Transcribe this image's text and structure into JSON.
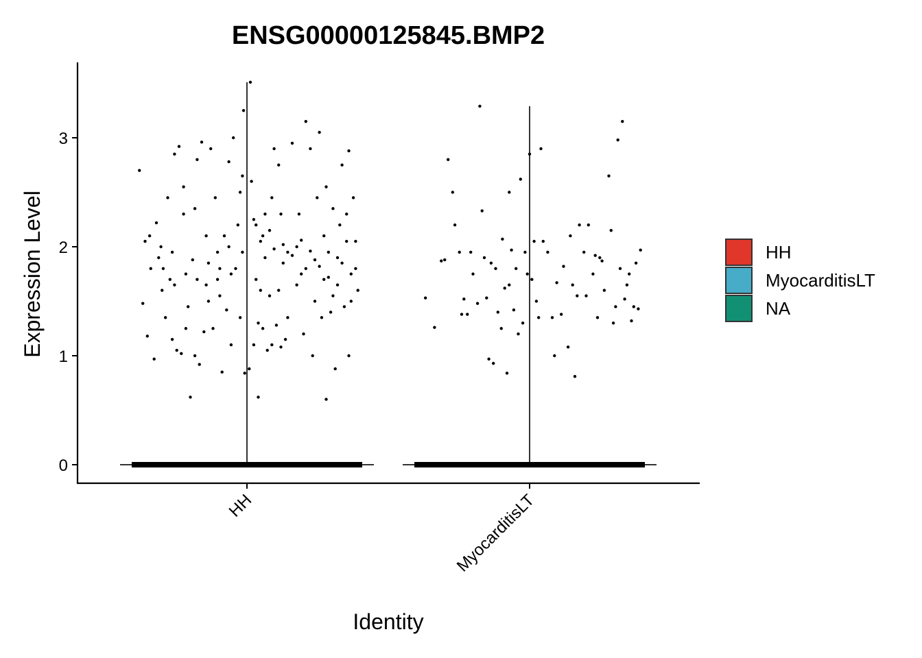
{
  "chart_data": {
    "type": "violin",
    "title": "ENSG00000125845.BMP2",
    "xlabel": "Identity",
    "ylabel": "Expression Level",
    "categories": [
      "HH",
      "MyocarditisLT"
    ],
    "ylim": [
      -0.17,
      3.7
    ],
    "yticks": [
      0,
      1,
      2,
      3
    ],
    "grid": false,
    "legend": {
      "position": "right",
      "entries": [
        {
          "label": "HH",
          "color": "#E0372A"
        },
        {
          "label": "MyocarditisLT",
          "color": "#46ACC8"
        },
        {
          "label": "NA",
          "color": "#129074"
        }
      ]
    },
    "series": [
      {
        "category": "HH",
        "max": 3.51,
        "zero_count_approx": 2000,
        "points": [
          [
            -0.95,
            2.7
          ],
          [
            -0.9,
            2.05
          ],
          [
            -0.85,
            1.8
          ],
          [
            -0.8,
            2.22
          ],
          [
            -0.75,
            1.6
          ],
          [
            -0.7,
            2.45
          ],
          [
            -0.92,
            1.48
          ],
          [
            -0.88,
            1.18
          ],
          [
            -0.82,
            0.97
          ],
          [
            -0.78,
            1.9
          ],
          [
            -0.72,
            1.35
          ],
          [
            -0.68,
            1.7
          ],
          [
            -0.64,
            2.85
          ],
          [
            -0.6,
            2.92
          ],
          [
            -0.56,
            2.55
          ],
          [
            -0.52,
            1.45
          ],
          [
            -0.48,
            1.88
          ],
          [
            -0.44,
            2.8
          ],
          [
            -0.4,
            2.96
          ],
          [
            -0.36,
            1.65
          ],
          [
            -0.32,
            2.9
          ],
          [
            -0.28,
            2.45
          ],
          [
            -0.24,
            1.55
          ],
          [
            -0.2,
            2.1
          ],
          [
            -0.16,
            2.78
          ],
          [
            -0.12,
            3.0
          ],
          [
            -0.08,
            2.2
          ],
          [
            -0.04,
            2.65
          ],
          [
            -0.66,
            1.15
          ],
          [
            -0.62,
            1.05
          ],
          [
            -0.58,
            1.02
          ],
          [
            -0.54,
            1.25
          ],
          [
            -0.5,
            0.62
          ],
          [
            -0.46,
            1.0
          ],
          [
            -0.42,
            0.92
          ],
          [
            -0.38,
            1.22
          ],
          [
            -0.34,
            1.5
          ],
          [
            -0.3,
            1.25
          ],
          [
            -0.26,
            1.7
          ],
          [
            -0.22,
            0.85
          ],
          [
            -0.18,
            1.42
          ],
          [
            -0.14,
            1.1
          ],
          [
            -0.1,
            1.8
          ],
          [
            -0.06,
            1.35
          ],
          [
            -0.02,
            0.84
          ],
          [
            -0.86,
            2.1
          ],
          [
            -0.76,
            2.0
          ],
          [
            -0.66,
            1.95
          ],
          [
            -0.56,
            2.3
          ],
          [
            -0.46,
            2.35
          ],
          [
            -0.36,
            2.1
          ],
          [
            -0.26,
            1.95
          ],
          [
            -0.16,
            2.0
          ],
          [
            -0.06,
            2.5
          ],
          [
            -0.03,
            3.25
          ],
          [
            -0.74,
            1.8
          ],
          [
            -0.64,
            1.65
          ],
          [
            -0.54,
            1.75
          ],
          [
            -0.44,
            1.7
          ],
          [
            -0.34,
            1.85
          ],
          [
            -0.24,
            1.8
          ],
          [
            -0.14,
            1.75
          ],
          [
            -0.04,
            1.95
          ],
          [
            0.04,
            2.6
          ],
          [
            0.08,
            2.2
          ],
          [
            0.12,
            1.6
          ],
          [
            0.16,
            2.3
          ],
          [
            0.2,
            2.15
          ],
          [
            0.24,
            2.9
          ],
          [
            0.28,
            2.75
          ],
          [
            0.32,
            1.85
          ],
          [
            0.36,
            1.35
          ],
          [
            0.4,
            2.95
          ],
          [
            0.44,
            2.0
          ],
          [
            0.48,
            1.75
          ],
          [
            0.52,
            3.15
          ],
          [
            0.56,
            2.9
          ],
          [
            0.6,
            1.5
          ],
          [
            0.64,
            3.05
          ],
          [
            0.68,
            2.1
          ],
          [
            0.72,
            1.95
          ],
          [
            0.76,
            2.35
          ],
          [
            0.8,
            1.65
          ],
          [
            0.84,
            2.75
          ],
          [
            0.88,
            2.05
          ],
          [
            0.92,
            1.5
          ],
          [
            0.96,
            1.8
          ],
          [
            0.98,
            1.6
          ],
          [
            0.06,
            1.1
          ],
          [
            0.1,
            1.3
          ],
          [
            0.14,
            1.25
          ],
          [
            0.18,
            1.05
          ],
          [
            0.22,
            1.1
          ],
          [
            0.26,
            1.28
          ],
          [
            0.3,
            1.08
          ],
          [
            0.34,
            1.15
          ],
          [
            0.5,
            1.2
          ],
          [
            0.58,
            1.0
          ],
          [
            0.66,
            1.35
          ],
          [
            0.7,
            0.6
          ],
          [
            0.74,
            1.4
          ],
          [
            0.78,
            0.88
          ],
          [
            0.86,
            1.45
          ],
          [
            0.9,
            1.0
          ],
          [
            0.1,
            0.62
          ],
          [
            0.02,
            0.88
          ],
          [
            0.03,
            3.51
          ],
          [
            0.08,
            1.7
          ],
          [
            0.16,
            1.9
          ],
          [
            0.2,
            1.55
          ],
          [
            0.28,
            1.6
          ],
          [
            0.36,
            1.95
          ],
          [
            0.44,
            1.65
          ],
          [
            0.52,
            1.8
          ],
          [
            0.6,
            1.88
          ],
          [
            0.68,
            1.7
          ],
          [
            0.76,
            1.55
          ],
          [
            0.84,
            1.85
          ],
          [
            0.92,
            1.75
          ],
          [
            0.96,
            2.05
          ],
          [
            0.12,
            2.05
          ],
          [
            0.24,
            1.98
          ],
          [
            0.32,
            2.02
          ],
          [
            0.4,
            1.92
          ],
          [
            0.48,
            2.06
          ],
          [
            0.56,
            1.96
          ],
          [
            0.64,
            1.82
          ],
          [
            0.72,
            1.72
          ],
          [
            0.8,
            1.9
          ],
          [
            0.88,
            2.3
          ],
          [
            0.3,
            2.3
          ],
          [
            0.22,
            2.45
          ],
          [
            0.14,
            2.1
          ],
          [
            0.06,
            2.25
          ],
          [
            0.46,
            2.3
          ],
          [
            0.62,
            2.45
          ],
          [
            0.7,
            2.55
          ],
          [
            0.82,
            2.2
          ],
          [
            0.94,
            2.45
          ],
          [
            0.9,
            2.88
          ]
        ]
      },
      {
        "category": "MyocarditisLT",
        "max": 3.29,
        "zero_count_approx": 1500,
        "points": [
          [
            -0.92,
            1.53
          ],
          [
            -0.84,
            1.26
          ],
          [
            -0.75,
            1.88
          ],
          [
            -0.72,
            2.8
          ],
          [
            -0.68,
            2.5
          ],
          [
            -0.66,
            2.2
          ],
          [
            -0.62,
            1.95
          ],
          [
            -0.58,
            1.52
          ],
          [
            -0.55,
            1.38
          ],
          [
            -0.5,
            1.75
          ],
          [
            -0.46,
            1.48
          ],
          [
            -0.44,
            3.29
          ],
          [
            -0.42,
            2.33
          ],
          [
            -0.4,
            1.9
          ],
          [
            -0.36,
            0.97
          ],
          [
            -0.34,
            1.85
          ],
          [
            -0.32,
            0.93
          ],
          [
            -0.3,
            1.8
          ],
          [
            -0.28,
            1.4
          ],
          [
            -0.25,
            1.25
          ],
          [
            -0.22,
            1.62
          ],
          [
            -0.2,
            0.84
          ],
          [
            -0.18,
            2.5
          ],
          [
            -0.16,
            1.97
          ],
          [
            -0.14,
            1.42
          ],
          [
            -0.12,
            1.8
          ],
          [
            -0.1,
            1.2
          ],
          [
            -0.08,
            2.62
          ],
          [
            -0.06,
            1.3
          ],
          [
            -0.04,
            1.95
          ],
          [
            -0.02,
            1.75
          ],
          [
            0.0,
            2.85
          ],
          [
            0.02,
            1.7
          ],
          [
            0.06,
            1.5
          ],
          [
            0.1,
            2.9
          ],
          [
            0.12,
            2.05
          ],
          [
            0.16,
            1.95
          ],
          [
            0.2,
            1.35
          ],
          [
            0.24,
            1.67
          ],
          [
            0.28,
            1.38
          ],
          [
            0.3,
            1.82
          ],
          [
            0.34,
            1.08
          ],
          [
            0.36,
            2.1
          ],
          [
            0.4,
            0.81
          ],
          [
            0.42,
            1.55
          ],
          [
            0.44,
            2.2
          ],
          [
            0.48,
            1.95
          ],
          [
            0.5,
            1.55
          ],
          [
            0.52,
            2.2
          ],
          [
            0.56,
            1.75
          ],
          [
            0.6,
            1.35
          ],
          [
            0.62,
            1.9
          ],
          [
            0.64,
            1.87
          ],
          [
            0.66,
            1.6
          ],
          [
            0.7,
            2.65
          ],
          [
            0.72,
            2.15
          ],
          [
            0.74,
            1.3
          ],
          [
            0.76,
            1.45
          ],
          [
            0.78,
            2.98
          ],
          [
            0.8,
            1.8
          ],
          [
            0.82,
            3.15
          ],
          [
            0.84,
            1.52
          ],
          [
            0.86,
            1.65
          ],
          [
            0.88,
            1.75
          ],
          [
            0.9,
            1.32
          ],
          [
            0.92,
            1.45
          ],
          [
            0.94,
            1.85
          ],
          [
            0.96,
            1.43
          ],
          [
            0.98,
            1.97
          ],
          [
            -0.78,
            1.87
          ],
          [
            -0.6,
            1.38
          ],
          [
            -0.52,
            1.95
          ],
          [
            -0.38,
            1.53
          ],
          [
            -0.24,
            2.07
          ],
          [
            -0.18,
            1.65
          ],
          [
            0.04,
            2.05
          ],
          [
            0.08,
            1.35
          ],
          [
            0.22,
            1.0
          ],
          [
            0.38,
            1.65
          ],
          [
            0.58,
            1.92
          ]
        ]
      }
    ]
  }
}
